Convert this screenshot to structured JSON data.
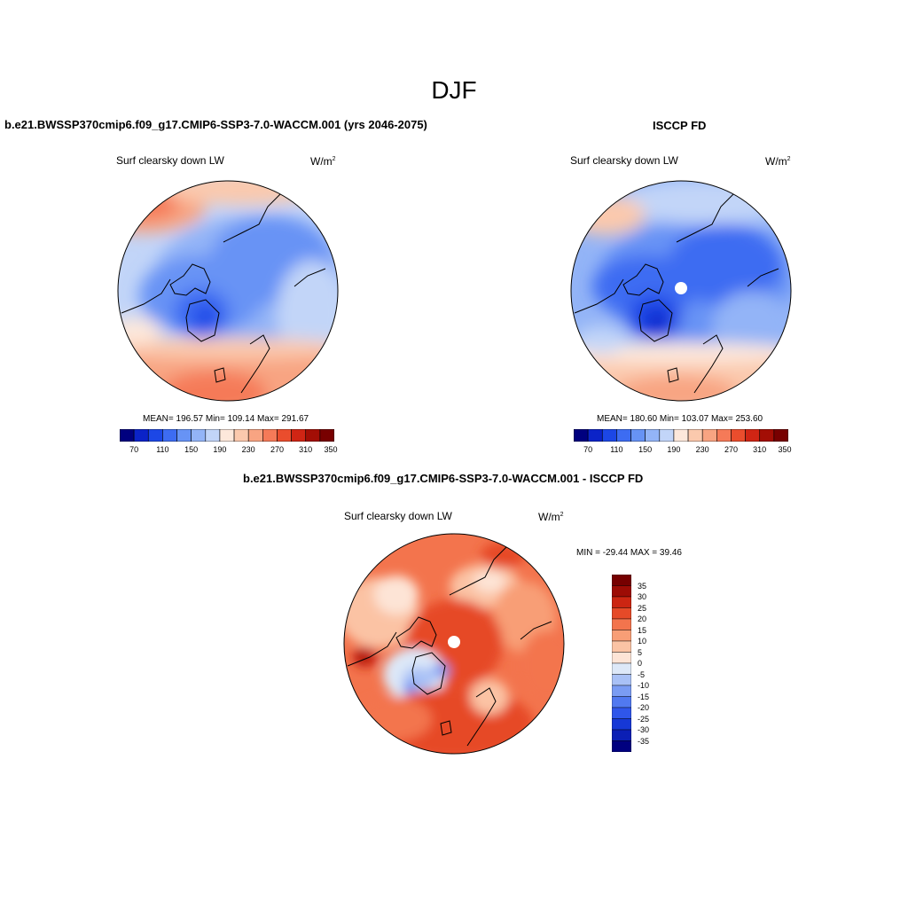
{
  "season_title": "DJF",
  "colors": {
    "sequential": [
      "#00007f",
      "#0b23c8",
      "#1c47e6",
      "#3d6cf2",
      "#6793f5",
      "#93b4f7",
      "#c2d5f8",
      "#fde8db",
      "#fbc9ad",
      "#f8a482",
      "#f57a58",
      "#ea4d2d",
      "#d02514",
      "#a30e05",
      "#780000"
    ],
    "diverging": [
      "#00007f",
      "#0b1fb5",
      "#1638d6",
      "#2f56ea",
      "#5179f0",
      "#7a9cf3",
      "#a9c1f6",
      "#dde8f8",
      "#fde4d6",
      "#fbc3a4",
      "#f89e76",
      "#f3744d",
      "#e64a28",
      "#cc2612",
      "#9d0c05",
      "#760000"
    ]
  },
  "panels": {
    "model": {
      "title": "b.e21.BWSSP370cmip6.f09_g17.CMIP6-SSP3-7.0-WACCM.001 (yrs 2046-2075)",
      "variable": "Surf clearsky down LW",
      "units_base": "W/m",
      "units_exp": "2",
      "stats": "MEAN= 196.57  Min= 109.14  Max= 291.67",
      "colorbar_ticks": [
        "70",
        "110",
        "150",
        "190",
        "230",
        "270",
        "310",
        "350"
      ]
    },
    "obs": {
      "title": "ISCCP FD",
      "variable": "Surf clearsky down LW",
      "units_base": "W/m",
      "units_exp": "2",
      "stats": "MEAN= 180.60  Min= 103.07  Max= 253.60",
      "colorbar_ticks": [
        "70",
        "110",
        "150",
        "190",
        "230",
        "270",
        "310",
        "350"
      ]
    },
    "diff": {
      "title": "b.e21.BWSSP370cmip6.f09_g17.CMIP6-SSP3-7.0-WACCM.001 - ISCCP FD",
      "variable": "Surf clearsky down LW",
      "units_base": "W/m",
      "units_exp": "2",
      "stats": "MIN = -29.44 MAX =  39.46",
      "colorbar_ticks": [
        "35",
        "30",
        "25",
        "20",
        "15",
        "10",
        "5",
        "0",
        "-5",
        "-10",
        "-15",
        "-20",
        "-25",
        "-30",
        "-35"
      ]
    }
  }
}
